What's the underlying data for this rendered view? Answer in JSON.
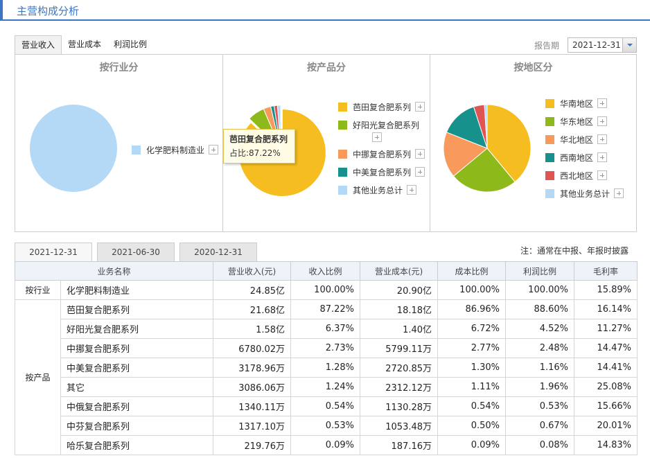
{
  "header": {
    "title": "主营构成分析"
  },
  "tabs": [
    "营业收入",
    "营业成本",
    "利润比例"
  ],
  "period": {
    "label": "报告期",
    "value": "2021-12-31"
  },
  "colors": {
    "accent": "#3a76c4"
  },
  "chart_data": [
    {
      "type": "pie",
      "title": "按行业分",
      "series": [
        {
          "name": "化学肥料制造业",
          "value": 100,
          "color": "#b3d9f7"
        }
      ]
    },
    {
      "type": "pie",
      "title": "按产品分",
      "legend": [
        {
          "name": "芭田复合肥系列",
          "color": "#f5bd1f"
        },
        {
          "name": "好阳光复合肥系列",
          "color": "#8dba1a"
        },
        {
          "name": "中挪复合肥系列",
          "color": "#f79a5b"
        },
        {
          "name": "中美复合肥系列",
          "color": "#17918c"
        },
        {
          "name": "其他业务总计",
          "color": "#b3d9f7"
        }
      ],
      "series": [
        {
          "name": "芭田复合肥系列",
          "value": 87.22,
          "color": "#f5bd1f"
        },
        {
          "name": "好阳光复合肥系列",
          "value": 6.37,
          "color": "#8dba1a"
        },
        {
          "name": "中挪复合肥系列",
          "value": 2.73,
          "color": "#f79a5b"
        },
        {
          "name": "中美复合肥系列",
          "value": 1.28,
          "color": "#17918c"
        },
        {
          "name": "其它",
          "value": 1.24,
          "color": "#e05454"
        },
        {
          "name": "其他业务总计",
          "value": 1.16,
          "color": "#b3d9f7"
        }
      ],
      "tooltip": {
        "name": "芭田复合肥系列",
        "text": "占比:87.22%"
      }
    },
    {
      "type": "pie",
      "title": "按地区分",
      "series": [
        {
          "name": "华南地区",
          "value": 39,
          "color": "#f5bd1f"
        },
        {
          "name": "华东地区",
          "value": 25,
          "color": "#8dba1a"
        },
        {
          "name": "华北地区",
          "value": 17,
          "color": "#f79a5b"
        },
        {
          "name": "西南地区",
          "value": 14,
          "color": "#17918c"
        },
        {
          "name": "西北地区",
          "value": 4,
          "color": "#e05454"
        },
        {
          "name": "其他业务总计",
          "value": 1,
          "color": "#b3d9f7"
        }
      ]
    }
  ],
  "detail": {
    "dates": [
      "2021-12-31",
      "2021-06-30",
      "2020-12-31"
    ],
    "note": "注：通常在中报、年报时披露",
    "columns": [
      "业务名称",
      "营业收入(元)",
      "收入比例",
      "营业成本(元)",
      "成本比例",
      "利润比例",
      "毛利率"
    ],
    "groups": [
      {
        "category": "按行业",
        "rows": [
          [
            "化学肥料制造业",
            "24.85亿",
            "100.00%",
            "20.90亿",
            "100.00%",
            "100.00%",
            "15.89%"
          ]
        ]
      },
      {
        "category": "按产品",
        "rows": [
          [
            "芭田复合肥系列",
            "21.68亿",
            "87.22%",
            "18.18亿",
            "86.96%",
            "88.60%",
            "16.14%"
          ],
          [
            "好阳光复合肥系列",
            "1.58亿",
            "6.37%",
            "1.40亿",
            "6.72%",
            "4.52%",
            "11.27%"
          ],
          [
            "中挪复合肥系列",
            "6780.02万",
            "2.73%",
            "5799.11万",
            "2.77%",
            "2.48%",
            "14.47%"
          ],
          [
            "中美复合肥系列",
            "3178.96万",
            "1.28%",
            "2720.85万",
            "1.30%",
            "1.16%",
            "14.41%"
          ],
          [
            "其它",
            "3086.06万",
            "1.24%",
            "2312.12万",
            "1.11%",
            "1.96%",
            "25.08%"
          ],
          [
            "中俄复合肥系列",
            "1340.11万",
            "0.54%",
            "1130.28万",
            "0.54%",
            "0.53%",
            "15.66%"
          ],
          [
            "中芬复合肥系列",
            "1317.10万",
            "0.53%",
            "1053.48万",
            "0.50%",
            "0.67%",
            "20.01%"
          ],
          [
            "哈乐复合肥系列",
            "219.76万",
            "0.09%",
            "187.16万",
            "0.09%",
            "0.08%",
            "14.83%"
          ]
        ]
      }
    ]
  }
}
